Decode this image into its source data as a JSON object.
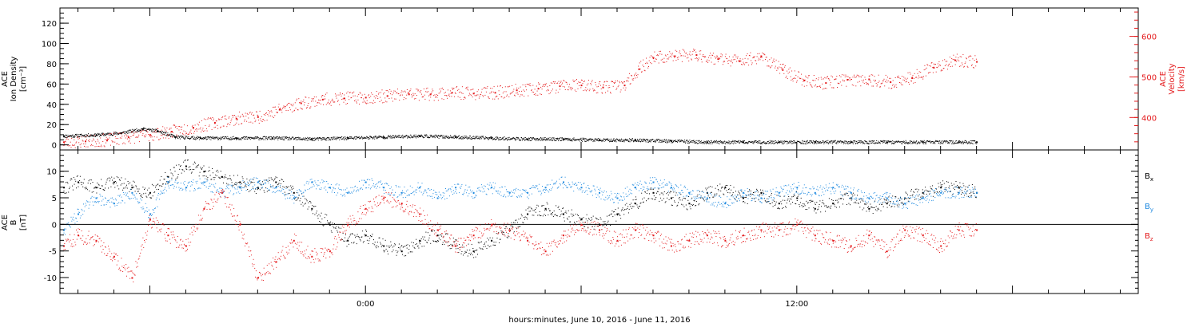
{
  "xlabel": "hours:minutes, June 10, 2016 - June 11, 2016",
  "colors": {
    "black": "#000000",
    "red": "#e41a1c",
    "blue": "#1f8ae0"
  },
  "chart_data": [
    {
      "type": "scatter",
      "panel": "top",
      "ylabel": [
        "ACE",
        "Ion Density",
        "[cm⁻³]"
      ],
      "y2label": [
        "ACE",
        "Velocity",
        "[km/s]"
      ],
      "ylim": [
        -5,
        135
      ],
      "y2lim": [
        320,
        670
      ],
      "yticks": [
        0,
        20,
        40,
        60,
        80,
        100,
        120
      ],
      "y2ticks": [
        400,
        500,
        600
      ],
      "xlim_hours": [
        -8.5,
        21.5
      ],
      "x_tick_labels": [
        {
          "hour": 0,
          "label": "0:00"
        },
        {
          "hour": 12,
          "label": "12:00"
        }
      ],
      "series": [
        {
          "color": "black",
          "axis": "left",
          "x": [
            -8.4,
            -7.5,
            -6.8,
            -6.2,
            -5.8,
            -5.3,
            -4.6,
            -3.6,
            -2.6,
            -1.5,
            -0.5,
            0.5,
            1.5,
            2.5,
            3.5,
            4.5,
            5.5,
            6.5,
            7.5,
            8.5,
            9.5,
            10.5,
            11.5,
            12.5,
            13.5,
            14.5,
            15.5,
            16.5,
            17.0
          ],
          "y": [
            9,
            10,
            12,
            16,
            14,
            8,
            7,
            7,
            7,
            6,
            7,
            8,
            9,
            8,
            7,
            6,
            6,
            5,
            5,
            4,
            3,
            3,
            3,
            3,
            3,
            3,
            3,
            3,
            3
          ]
        },
        {
          "color": "red",
          "axis": "right",
          "x": [
            -8.4,
            -7.8,
            -7.2,
            -6.6,
            -6.0,
            -5.4,
            -4.8,
            -4.2,
            -3.6,
            -3.0,
            -2.4,
            -1.8,
            -1.2,
            -0.6,
            0.0,
            0.6,
            1.2,
            1.8,
            2.4,
            3.0,
            3.6,
            4.2,
            4.8,
            5.4,
            6.0,
            6.6,
            7.2,
            7.6,
            8.0,
            8.6,
            9.2,
            9.8,
            10.4,
            11.0,
            11.6,
            12.2,
            12.8,
            13.4,
            14.0,
            14.6,
            15.2,
            15.8,
            16.4,
            17.0
          ],
          "y": [
            340,
            342,
            345,
            352,
            358,
            366,
            376,
            388,
            398,
            402,
            420,
            436,
            445,
            448,
            450,
            454,
            458,
            458,
            462,
            460,
            462,
            468,
            472,
            478,
            480,
            475,
            480,
            520,
            548,
            552,
            555,
            545,
            540,
            552,
            518,
            492,
            486,
            494,
            495,
            488,
            498,
            524,
            542,
            538
          ]
        }
      ]
    },
    {
      "type": "scatter",
      "panel": "bottom",
      "ylabel": [
        "ACE",
        "B",
        "[nT]"
      ],
      "ylim": [
        -13,
        14
      ],
      "yticks": [
        -10,
        -5,
        0,
        5,
        10
      ],
      "xlim_hours": [
        -8.5,
        21.5
      ],
      "legend": [
        {
          "text": "B",
          "sub": "x",
          "color": "black"
        },
        {
          "text": "B",
          "sub": "y",
          "color": "blue"
        },
        {
          "text": "B",
          "sub": "z",
          "color": "red"
        }
      ],
      "series": [
        {
          "color": "black",
          "x": [
            -8.4,
            -8.0,
            -7.5,
            -7.0,
            -6.5,
            -6.0,
            -5.5,
            -5.0,
            -4.5,
            -4.0,
            -3.5,
            -3.0,
            -2.5,
            -2.0,
            -1.5,
            -1.0,
            -0.5,
            0.0,
            0.5,
            1.0,
            1.5,
            2.0,
            2.5,
            3.0,
            3.5,
            4.0,
            4.5,
            5.0,
            5.5,
            6.0,
            6.5,
            7.0,
            7.5,
            8.0,
            8.5,
            9.0,
            9.5,
            10.0,
            10.5,
            11.0,
            11.5,
            12.0,
            12.5,
            13.0,
            13.5,
            14.0,
            14.5,
            15.0,
            15.5,
            16.0,
            16.5,
            17.0
          ],
          "y": [
            7,
            8,
            7,
            8,
            7,
            6,
            9,
            11,
            10,
            9,
            8,
            7,
            8,
            6,
            3,
            0,
            -3,
            -2,
            -4,
            -5,
            -3,
            -2,
            -4,
            -5,
            -3,
            -1,
            2,
            3,
            2,
            1,
            0,
            2,
            4,
            6,
            5,
            4,
            6,
            7,
            5,
            6,
            4,
            5,
            3,
            4,
            5,
            3,
            4,
            5,
            6,
            7,
            7,
            6
          ]
        },
        {
          "color": "blue",
          "x": [
            -8.4,
            -8.0,
            -7.5,
            -7.0,
            -6.5,
            -6.0,
            -5.5,
            -5.0,
            -4.5,
            -4.0,
            -3.5,
            -3.0,
            -2.5,
            -2.0,
            -1.5,
            -1.0,
            -0.5,
            0.0,
            0.5,
            1.0,
            1.5,
            2.0,
            2.5,
            3.0,
            3.5,
            4.0,
            4.5,
            5.0,
            5.5,
            6.0,
            6.5,
            7.0,
            7.5,
            8.0,
            8.5,
            9.0,
            9.5,
            10.0,
            10.5,
            11.0,
            11.5,
            12.0,
            12.5,
            13.0,
            13.5,
            14.0,
            14.5,
            15.0,
            15.5,
            16.0,
            16.5,
            17.0
          ],
          "y": [
            -1,
            2,
            5,
            4,
            6,
            2,
            8,
            7,
            8,
            6,
            7,
            8,
            7,
            5,
            8,
            7,
            6,
            8,
            7,
            6,
            7,
            5,
            7,
            6,
            7,
            6,
            6,
            7,
            8,
            7,
            6,
            5,
            7,
            8,
            7,
            6,
            5,
            4,
            6,
            5,
            6,
            7,
            6,
            7,
            6,
            5,
            5,
            4,
            5,
            6,
            6,
            6
          ]
        },
        {
          "color": "red",
          "x": [
            -8.4,
            -8.0,
            -7.5,
            -7.0,
            -6.5,
            -6.0,
            -5.5,
            -5.0,
            -4.5,
            -4.0,
            -3.5,
            -3.0,
            -2.5,
            -2.0,
            -1.5,
            -1.0,
            -0.5,
            0.0,
            0.5,
            1.0,
            1.5,
            2.0,
            2.5,
            3.0,
            3.5,
            4.0,
            4.5,
            5.0,
            5.5,
            6.0,
            6.5,
            7.0,
            7.5,
            8.0,
            8.5,
            9.0,
            9.5,
            10.0,
            10.5,
            11.0,
            11.5,
            12.0,
            12.5,
            13.0,
            13.5,
            14.0,
            14.5,
            15.0,
            15.5,
            16.0,
            16.5,
            17.0
          ],
          "y": [
            -4,
            -2,
            -3,
            -6,
            -10,
            1,
            -2,
            -4,
            3,
            6,
            0,
            -10,
            -7,
            -3,
            -6,
            -5,
            0,
            3,
            5,
            4,
            2,
            -1,
            -4,
            -2,
            0,
            -1,
            -3,
            -5,
            -2,
            0,
            -1,
            -3,
            -1,
            -2,
            -4,
            -3,
            -2,
            -3,
            -2,
            -1,
            -1,
            0,
            -2,
            -3,
            -4,
            -2,
            -5,
            -1,
            -2,
            -4,
            -1,
            -1
          ]
        }
      ]
    }
  ]
}
